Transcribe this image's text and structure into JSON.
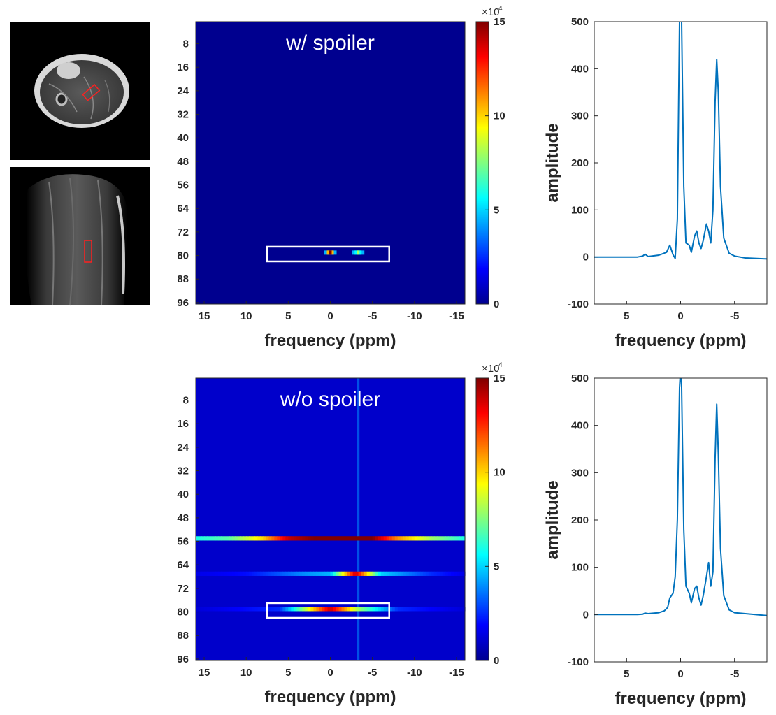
{
  "figure": {
    "mri_views": [
      {
        "name": "axial-view"
      },
      {
        "name": "coronal-view"
      }
    ]
  },
  "chart_data": [
    {
      "type": "heatmap",
      "name": "heatmap-with-spoiler",
      "title": "w/ spoiler",
      "xlabel": "frequency (ppm)",
      "ylabel": "",
      "xticks": [
        15,
        10,
        5,
        0,
        -5,
        -10,
        -15
      ],
      "yticks": [
        8,
        16,
        24,
        32,
        40,
        48,
        56,
        64,
        72,
        80,
        88,
        96
      ],
      "xlim": [
        16,
        -16
      ],
      "ylim": [
        1,
        96
      ],
      "background_value": 0,
      "hotspots": [
        {
          "ppm": 0,
          "row": 79,
          "value": 150000
        },
        {
          "ppm": -3.3,
          "row": 79,
          "value": 80000
        }
      ],
      "highlight_box": {
        "ppm_range": [
          7.5,
          -7
        ],
        "row_range": [
          77,
          82
        ]
      },
      "colorbar": {
        "ticks": [
          0,
          5,
          10,
          15
        ],
        "multiplier": "×10",
        "exponent": "4",
        "range": [
          0,
          150000
        ]
      }
    },
    {
      "type": "heatmap",
      "name": "heatmap-without-spoiler",
      "title": "w/o spoiler",
      "xlabel": "frequency (ppm)",
      "ylabel": "",
      "xticks": [
        15,
        10,
        5,
        0,
        -5,
        -10,
        -15
      ],
      "yticks": [
        8,
        16,
        24,
        32,
        40,
        48,
        56,
        64,
        72,
        80,
        88,
        96
      ],
      "xlim": [
        16,
        -16
      ],
      "ylim": [
        1,
        96
      ],
      "background_value": 10000,
      "artifact_rows": [
        {
          "row": 55,
          "profile": [
            [
              16,
              60000
            ],
            [
              12,
              70000
            ],
            [
              8,
              100000
            ],
            [
              5,
              140000
            ],
            [
              2,
              150000
            ],
            [
              0,
              150000
            ],
            [
              -2,
              150000
            ],
            [
              -5,
              150000
            ],
            [
              -8,
              110000
            ],
            [
              -12,
              80000
            ],
            [
              -16,
              60000
            ]
          ]
        },
        {
          "row": 67,
          "profile": [
            [
              16,
              15000
            ],
            [
              10,
              20000
            ],
            [
              3,
              40000
            ],
            [
              0,
              45000
            ],
            [
              -3,
              140000
            ],
            [
              -6,
              50000
            ],
            [
              -12,
              25000
            ],
            [
              -16,
              15000
            ]
          ]
        },
        {
          "row": 79,
          "profile": [
            [
              16,
              12000
            ],
            [
              6,
              25000
            ],
            [
              0,
              140000
            ],
            [
              -3.3,
              80000
            ],
            [
              -8,
              25000
            ],
            [
              -16,
              12000
            ]
          ]
        }
      ],
      "artifact_column": {
        "ppm": -3.3,
        "value": 40000
      },
      "highlight_box": {
        "ppm_range": [
          7.5,
          -7
        ],
        "row_range": [
          77,
          82
        ]
      },
      "colorbar": {
        "ticks": [
          0,
          5,
          10,
          15
        ],
        "multiplier": "×10",
        "exponent": "4",
        "range": [
          0,
          150000
        ]
      }
    },
    {
      "type": "line",
      "name": "spectrum-with-spoiler",
      "xlabel": "frequency (ppm)",
      "ylabel": "amplitude",
      "xlim": [
        8,
        -8
      ],
      "ylim": [
        -100,
        500
      ],
      "xticks": [
        5,
        0,
        -5
      ],
      "yticks": [
        -100,
        0,
        100,
        200,
        300,
        400,
        500
      ],
      "line_color": "#0072BD",
      "series": [
        {
          "name": "spectrum",
          "x": [
            8,
            6,
            4,
            3.5,
            3.3,
            3,
            2,
            1.3,
            1.0,
            0.7,
            0.5,
            0.3,
            0.1,
            0,
            -0.1,
            -0.3,
            -0.5,
            -0.8,
            -1.0,
            -1.3,
            -1.5,
            -1.7,
            -1.9,
            -2.1,
            -2.4,
            -2.6,
            -2.8,
            -3.0,
            -3.2,
            -3.35,
            -3.5,
            -3.7,
            -4.0,
            -4.5,
            -5,
            -6,
            -8
          ],
          "y": [
            0,
            0,
            0,
            2,
            6,
            1,
            4,
            10,
            25,
            5,
            -3,
            80,
            500,
            520,
            500,
            150,
            30,
            25,
            10,
            45,
            55,
            30,
            18,
            35,
            70,
            55,
            30,
            100,
            330,
            420,
            350,
            150,
            40,
            8,
            2,
            -2,
            -4
          ]
        }
      ]
    },
    {
      "type": "line",
      "name": "spectrum-without-spoiler",
      "xlabel": "frequency (ppm)",
      "ylabel": "amplitude",
      "xlim": [
        8,
        -8
      ],
      "ylim": [
        -100,
        500
      ],
      "xticks": [
        5,
        0,
        -5
      ],
      "yticks": [
        -100,
        0,
        100,
        200,
        300,
        400,
        500
      ],
      "line_color": "#0072BD",
      "series": [
        {
          "name": "spectrum",
          "x": [
            8,
            6,
            4,
            3.5,
            3.3,
            3,
            2,
            1.5,
            1.2,
            1.0,
            0.7,
            0.5,
            0.3,
            0.1,
            0,
            -0.1,
            -0.3,
            -0.5,
            -0.8,
            -1.0,
            -1.3,
            -1.5,
            -1.7,
            -1.9,
            -2.1,
            -2.4,
            -2.6,
            -2.8,
            -3.0,
            -3.2,
            -3.35,
            -3.5,
            -3.7,
            -4.0,
            -4.5,
            -5,
            -6,
            -8
          ],
          "y": [
            0,
            0,
            0,
            1,
            3,
            2,
            4,
            8,
            15,
            35,
            45,
            80,
            200,
            480,
            520,
            480,
            180,
            60,
            45,
            25,
            55,
            60,
            35,
            20,
            40,
            80,
            110,
            60,
            90,
            330,
            445,
            340,
            140,
            40,
            10,
            4,
            2,
            -2
          ]
        }
      ]
    }
  ]
}
